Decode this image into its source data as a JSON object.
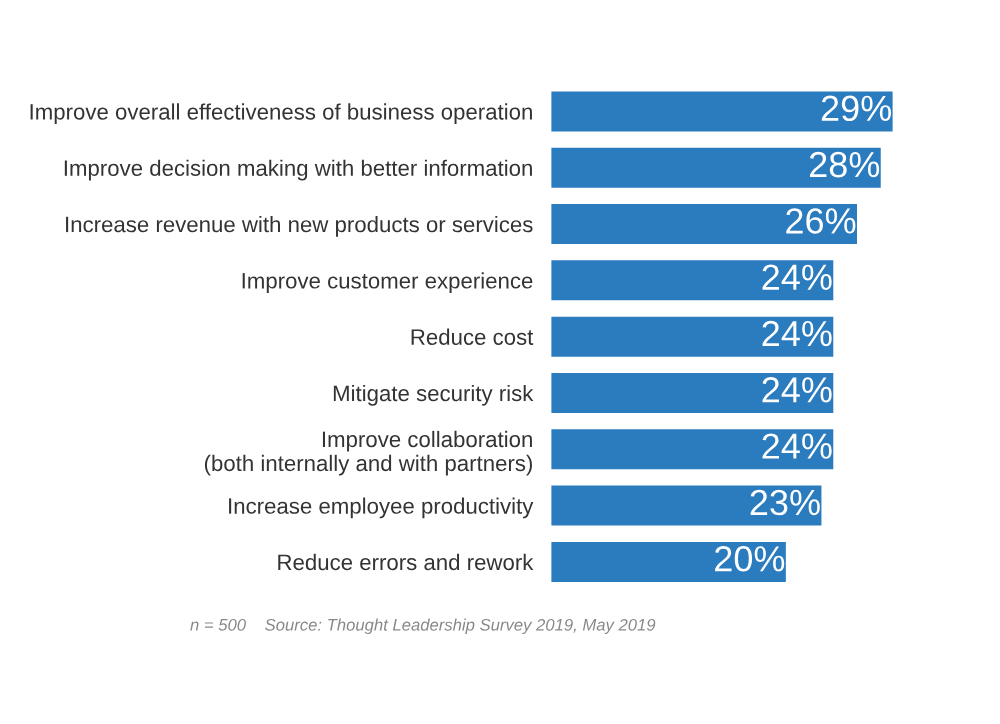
{
  "chart_data": {
    "type": "bar",
    "orientation": "horizontal",
    "categories": [
      "Improve overall effectiveness of business operation",
      "Improve decision making with better information",
      "Increase revenue with new products or services",
      "Improve customer experience",
      "Reduce cost",
      "Mitigate security risk",
      "Improve collaboration\n(both internally and with partners)",
      "Increase employee productivity",
      "Reduce errors and rework"
    ],
    "values": [
      29,
      28,
      26,
      24,
      24,
      24,
      24,
      23,
      20
    ],
    "value_labels": [
      "29%",
      "28%",
      "26%",
      "24%",
      "24%",
      "24%",
      "24%",
      "23%",
      "20%"
    ],
    "color": "#2b7bbf",
    "annotations": [
      "n = 500    Source: Thought Leadership Survey 2019, May 2019"
    ]
  }
}
